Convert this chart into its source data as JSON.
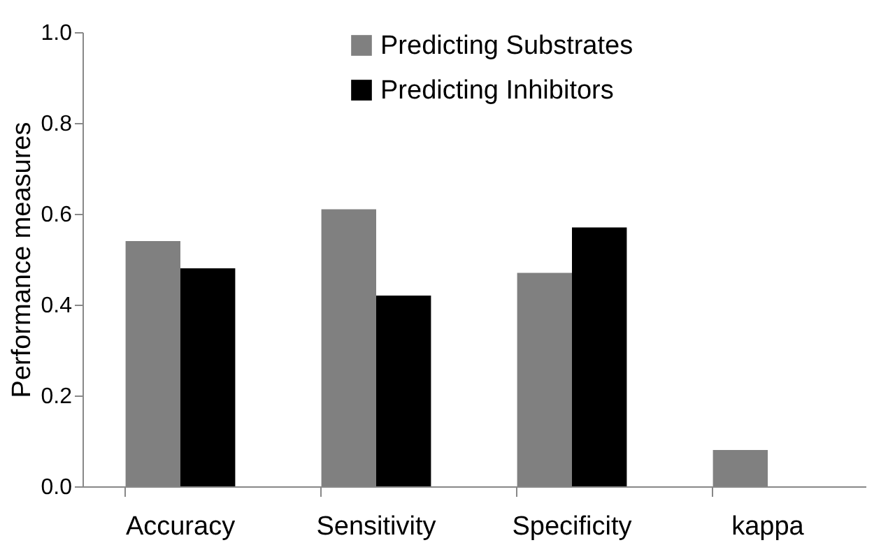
{
  "chart_data": {
    "type": "bar",
    "ylabel": "Performance measures",
    "categories": [
      "Accuracy",
      "Sensitivity",
      "Specificity",
      "kappa"
    ],
    "series": [
      {
        "name": "Predicting Substrates",
        "color": "#808080",
        "values": [
          0.54,
          0.61,
          0.47,
          0.08
        ]
      },
      {
        "name": "Predicting Inhibitors",
        "color": "#000000",
        "values": [
          0.48,
          0.42,
          0.57,
          0.0
        ]
      }
    ],
    "ylim": [
      0,
      1
    ],
    "yticks": [
      {
        "value": 0,
        "label": "0.0"
      },
      {
        "value": 0.2,
        "label": "0.2"
      },
      {
        "value": 0.4,
        "label": "0.4"
      },
      {
        "value": 0.6,
        "label": "0.6"
      },
      {
        "value": 0.8,
        "label": "0.8"
      },
      {
        "value": 1,
        "label": "1.0"
      }
    ],
    "grid": false,
    "legend": "top"
  }
}
